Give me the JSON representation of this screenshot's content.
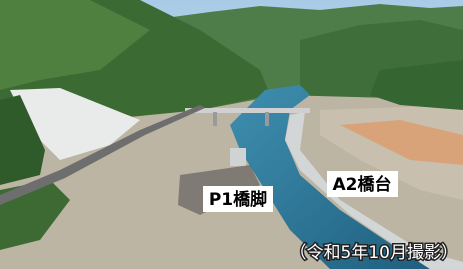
{
  "labels": [
    {
      "text": "P1橋脚"
    },
    {
      "text": "A2橋台"
    }
  ],
  "caption": "（令和5年10月撮影）"
}
